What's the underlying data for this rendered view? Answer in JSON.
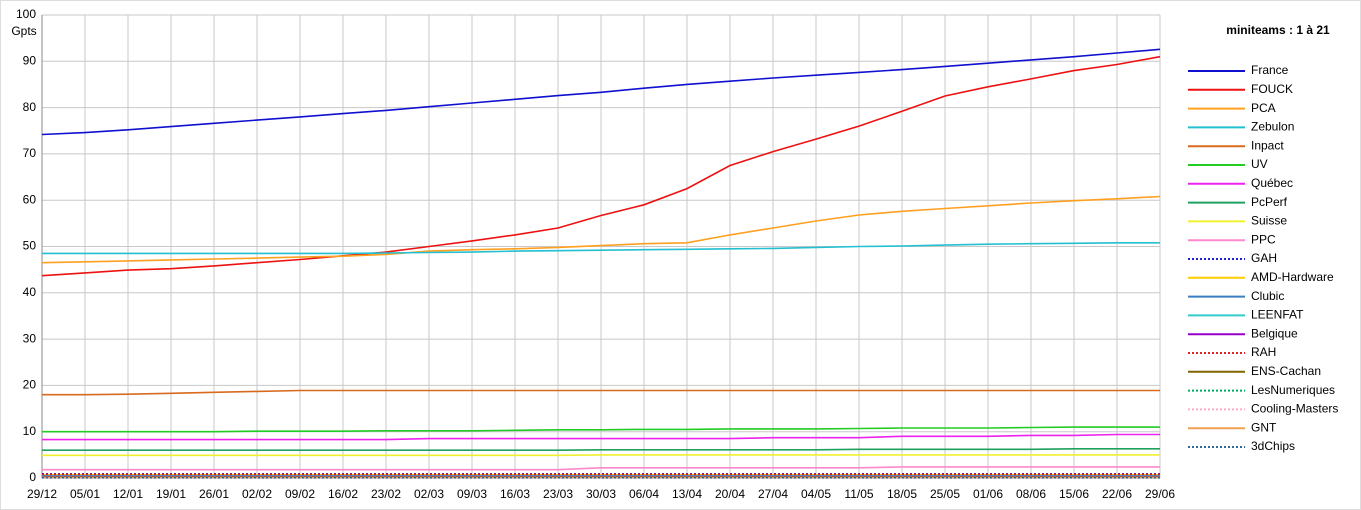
{
  "chart_data": {
    "type": "line",
    "title": "miniteams : 1 à 21",
    "y_label": "Gpts",
    "categories": [
      "29/12",
      "05/01",
      "12/01",
      "19/01",
      "26/01",
      "02/02",
      "09/02",
      "16/02",
      "23/02",
      "02/03",
      "09/03",
      "16/03",
      "23/03",
      "30/03",
      "06/04",
      "13/04",
      "20/04",
      "27/04",
      "04/05",
      "11/05",
      "18/05",
      "25/05",
      "01/06",
      "08/06",
      "15/06",
      "22/06",
      "29/06"
    ],
    "ylim": [
      0,
      100
    ],
    "yticks": [
      0,
      10,
      20,
      30,
      40,
      50,
      60,
      70,
      80,
      90,
      100
    ],
    "grid": true,
    "legend": "right",
    "series": [
      {
        "name": "France",
        "color": "#1010d0",
        "dash": "solid",
        "values": [
          74.2,
          74.6,
          75.2,
          75.9,
          76.6,
          77.3,
          78.0,
          78.7,
          79.4,
          80.2,
          81.0,
          81.8,
          82.6,
          83.3,
          84.2,
          85.0,
          85.7,
          86.4,
          87.0,
          87.6,
          88.2,
          88.9,
          89.6,
          90.3,
          91.0,
          91.8,
          92.6
        ]
      },
      {
        "name": "FOUCK",
        "color": "#ee1111",
        "dash": "solid",
        "values": [
          43.7,
          44.3,
          44.9,
          45.2,
          45.8,
          46.5,
          47.2,
          48.0,
          48.8,
          50.0,
          51.2,
          52.5,
          54.0,
          56.7,
          59.0,
          62.5,
          67.5,
          70.5,
          73.2,
          76.0,
          79.2,
          82.5,
          84.5,
          86.2,
          88.0,
          89.3,
          91.0
        ]
      },
      {
        "name": "PCA",
        "color": "#ffa020",
        "dash": "solid",
        "values": [
          46.5,
          46.7,
          46.9,
          47.1,
          47.3,
          47.5,
          47.7,
          47.9,
          48.3,
          49.0,
          49.3,
          49.5,
          49.8,
          50.2,
          50.6,
          50.8,
          52.5,
          54.0,
          55.5,
          56.8,
          57.6,
          58.2,
          58.8,
          59.4,
          59.9,
          60.3,
          60.8
        ]
      },
      {
        "name": "Zebulon",
        "color": "#22c0d0",
        "dash": "solid",
        "values": [
          48.5,
          48.5,
          48.5,
          48.5,
          48.5,
          48.5,
          48.5,
          48.5,
          48.6,
          48.7,
          48.8,
          49.0,
          49.1,
          49.2,
          49.3,
          49.4,
          49.5,
          49.6,
          49.8,
          50.0,
          50.1,
          50.3,
          50.5,
          50.6,
          50.7,
          50.8,
          50.8
        ]
      },
      {
        "name": "Inpact",
        "color": "#d86a20",
        "dash": "solid",
        "values": [
          18,
          18,
          18.1,
          18.3,
          18.5,
          18.7,
          18.9,
          18.9,
          18.9,
          18.9,
          18.9,
          18.9,
          18.9,
          18.9,
          18.9,
          18.9,
          18.9,
          18.9,
          18.9,
          18.9,
          18.9,
          18.9,
          18.9,
          18.9,
          18.9,
          18.9,
          18.9
        ]
      },
      {
        "name": "UV",
        "color": "#22cc22",
        "dash": "solid",
        "values": [
          10,
          10,
          10,
          10,
          10,
          10.1,
          10.1,
          10.1,
          10.2,
          10.2,
          10.2,
          10.3,
          10.4,
          10.4,
          10.5,
          10.5,
          10.6,
          10.6,
          10.6,
          10.7,
          10.8,
          10.8,
          10.8,
          10.9,
          11,
          11,
          11
        ]
      },
      {
        "name": "Québec",
        "color": "#ee22ee",
        "dash": "solid",
        "values": [
          8.3,
          8.3,
          8.3,
          8.3,
          8.3,
          8.3,
          8.3,
          8.3,
          8.3,
          8.5,
          8.5,
          8.5,
          8.5,
          8.5,
          8.5,
          8.5,
          8.5,
          8.7,
          8.7,
          8.7,
          9.0,
          9.0,
          9.0,
          9.2,
          9.2,
          9.4,
          9.4
        ]
      },
      {
        "name": "PcPerf",
        "color": "#20a060",
        "dash": "solid",
        "values": [
          6,
          6,
          6,
          6,
          6,
          6,
          6,
          6,
          6,
          6,
          6,
          6,
          6,
          6.1,
          6.1,
          6.1,
          6.1,
          6.1,
          6.1,
          6.2,
          6.2,
          6.2,
          6.2,
          6.2,
          6.3,
          6.3,
          6.3
        ]
      },
      {
        "name": "Suisse",
        "color": "#f0f030",
        "dash": "solid",
        "values": [
          4.9,
          4.9,
          4.9,
          4.9,
          4.9,
          4.9,
          4.9,
          4.9,
          4.9,
          4.9,
          4.9,
          4.9,
          4.9,
          5,
          5,
          5,
          5,
          5,
          5,
          5,
          5,
          5,
          5,
          5,
          5,
          5,
          5
        ]
      },
      {
        "name": "PPC",
        "color": "#ff88cc",
        "dash": "solid",
        "values": [
          1.8,
          1.8,
          1.8,
          1.8,
          1.8,
          1.8,
          1.8,
          1.8,
          1.8,
          1.8,
          1.8,
          1.8,
          1.8,
          2.2,
          2.2,
          2.2,
          2.2,
          2.2,
          2.2,
          2.2,
          2.4,
          2.4,
          2.4,
          2.4,
          2.4,
          2.4,
          2.4
        ]
      },
      {
        "name": "GAH",
        "color": "#2020cc",
        "dash": "dotted",
        "values": [
          0.9,
          0.9,
          0.9,
          0.9,
          0.9,
          0.9,
          0.9,
          0.9,
          0.9,
          0.9,
          0.9,
          0.9,
          0.9,
          0.9,
          0.9,
          0.9,
          0.9,
          0.9,
          0.9,
          0.9,
          0.9,
          0.9,
          0.9,
          0.9,
          0.9,
          0.9,
          0.9
        ]
      },
      {
        "name": "AMD-Hardware",
        "color": "#ffcc00",
        "dash": "solid",
        "values": [
          0.7,
          0.7,
          0.7,
          0.7,
          0.7,
          0.7,
          0.7,
          0.7,
          0.7,
          0.7,
          0.7,
          0.7,
          0.7,
          0.7,
          0.7,
          0.7,
          0.7,
          0.7,
          0.7,
          0.7,
          0.7,
          0.7,
          0.7,
          0.7,
          0.7,
          0.7,
          0.7
        ]
      },
      {
        "name": "Clubic",
        "color": "#3a7ebf",
        "dash": "solid",
        "values": [
          0.5,
          0.5,
          0.5,
          0.5,
          0.5,
          0.5,
          0.5,
          0.5,
          0.5,
          0.5,
          0.5,
          0.5,
          0.5,
          0.5,
          0.5,
          0.5,
          0.5,
          0.5,
          0.5,
          0.5,
          0.5,
          0.5,
          0.5,
          0.5,
          0.5,
          0.5,
          0.5
        ]
      },
      {
        "name": "LEENFAT",
        "color": "#33cccc",
        "dash": "solid",
        "values": [
          0.4,
          0.4,
          0.4,
          0.4,
          0.4,
          0.4,
          0.4,
          0.4,
          0.4,
          0.4,
          0.4,
          0.4,
          0.4,
          0.4,
          0.4,
          0.4,
          0.4,
          0.4,
          0.4,
          0.4,
          0.4,
          0.4,
          0.4,
          0.4,
          0.4,
          0.4,
          0.4
        ]
      },
      {
        "name": "Belgique",
        "color": "#9900cc",
        "dash": "solid",
        "values": [
          0.3,
          0.3,
          0.3,
          0.3,
          0.3,
          0.3,
          0.3,
          0.3,
          0.3,
          0.3,
          0.3,
          0.3,
          0.3,
          0.3,
          0.3,
          0.3,
          0.3,
          0.3,
          0.3,
          0.3,
          0.3,
          0.3,
          0.3,
          0.3,
          0.3,
          0.3,
          0.3
        ]
      },
      {
        "name": "RAH",
        "color": "#dd2222",
        "dash": "dotted",
        "values": [
          0.8,
          0.8,
          0.8,
          0.8,
          0.8,
          0.8,
          0.8,
          0.8,
          0.8,
          0.8,
          0.8,
          0.8,
          0.8,
          0.8,
          0.8,
          0.8,
          0.8,
          0.8,
          0.8,
          0.8,
          0.8,
          0.8,
          0.8,
          0.8,
          0.8,
          0.8,
          0.8
        ]
      },
      {
        "name": "ENS-Cachan",
        "color": "#806600",
        "dash": "solid",
        "values": [
          0.2,
          0.2,
          0.2,
          0.2,
          0.2,
          0.2,
          0.2,
          0.2,
          0.2,
          0.2,
          0.2,
          0.2,
          0.2,
          0.2,
          0.2,
          0.2,
          0.2,
          0.2,
          0.2,
          0.2,
          0.2,
          0.2,
          0.2,
          0.2,
          0.2,
          0.2,
          0.2
        ]
      },
      {
        "name": "LesNumeriques",
        "color": "#00aa66",
        "dash": "dotted",
        "values": [
          0.15,
          0.15,
          0.15,
          0.15,
          0.15,
          0.15,
          0.15,
          0.15,
          0.15,
          0.15,
          0.15,
          0.15,
          0.15,
          0.15,
          0.15,
          0.15,
          0.15,
          0.15,
          0.15,
          0.15,
          0.15,
          0.15,
          0.15,
          0.15,
          0.15,
          0.15,
          0.15
        ]
      },
      {
        "name": "Cooling-Masters",
        "color": "#ffaacc",
        "dash": "dotted",
        "values": [
          0.1,
          0.1,
          0.1,
          0.1,
          0.1,
          0.1,
          0.1,
          0.1,
          0.1,
          0.1,
          0.1,
          0.1,
          0.1,
          0.1,
          0.1,
          0.1,
          0.1,
          0.1,
          0.1,
          0.1,
          0.1,
          0.1,
          0.1,
          0.1,
          0.1,
          0.1,
          0.1
        ]
      },
      {
        "name": "GNT",
        "color": "#f0a050",
        "dash": "solid",
        "values": [
          0.1,
          0.1,
          0.1,
          0.1,
          0.1,
          0.1,
          0.1,
          0.1,
          0.1,
          0.1,
          0.1,
          0.1,
          0.1,
          0.1,
          0.1,
          0.1,
          0.1,
          0.1,
          0.1,
          0.1,
          0.1,
          0.1,
          0.1,
          0.1,
          0.1,
          0.1,
          0.1
        ]
      },
      {
        "name": "3dChips",
        "color": "#336699",
        "dash": "dotted",
        "values": [
          0.05,
          0.05,
          0.05,
          0.05,
          0.05,
          0.05,
          0.05,
          0.05,
          0.05,
          0.05,
          0.05,
          0.05,
          0.05,
          0.05,
          0.05,
          0.05,
          0.05,
          0.05,
          0.05,
          0.05,
          0.05,
          0.05,
          0.05,
          0.05,
          0.05,
          0.05,
          0.05
        ]
      }
    ]
  }
}
